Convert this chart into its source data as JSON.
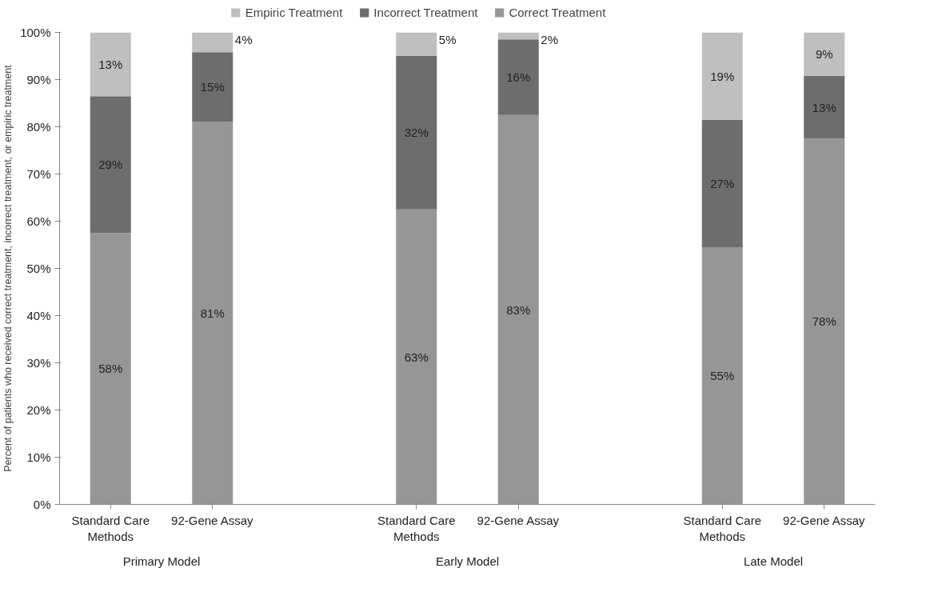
{
  "chart_data": {
    "type": "bar",
    "stacked": true,
    "categories": [
      "Standard Care Methods",
      "92-Gene Assay",
      null,
      "Standard Care Methods",
      "92-Gene Assay",
      null,
      "Standard Care Methods",
      "92-Gene Assay"
    ],
    "ylabel": "Percent of patients who received correct treatment, incorrect treatment, or empiric treatment",
    "annotations": [
      "Primary Model",
      "Early Model",
      "Late Model"
    ],
    "ylim": [
      0,
      100
    ],
    "yticks": [
      {
        "value": 0,
        "label": "0%"
      },
      {
        "value": 10,
        "label": "10%"
      },
      {
        "value": 20,
        "label": "20%"
      },
      {
        "value": 30,
        "label": "30%"
      },
      {
        "value": 40,
        "label": "40%"
      },
      {
        "value": 50,
        "label": "50%"
      },
      {
        "value": 60,
        "label": "60%"
      },
      {
        "value": 70,
        "label": "70%"
      },
      {
        "value": 80,
        "label": "80%"
      },
      {
        "value": 90,
        "label": "90%"
      },
      {
        "value": 100,
        "label": "100%"
      }
    ],
    "series": [
      {
        "name": "Correct Treatment",
        "color": "#969696",
        "values": [
          57.5,
          81,
          null,
          62.5,
          82.5,
          null,
          54.5,
          77.5
        ],
        "value_labels": [
          "58%",
          "81%",
          null,
          "63%",
          "83%",
          null,
          "55%",
          "78%"
        ]
      },
      {
        "name": "Incorrect Treatment",
        "color": "#6d6d6d",
        "values": [
          29,
          14.8,
          null,
          32.5,
          16,
          null,
          27,
          13.3
        ],
        "value_labels": [
          "29%",
          "15%",
          null,
          "32%",
          "16%",
          null,
          "27%",
          "13%"
        ]
      },
      {
        "name": "Empiric Treatment",
        "color": "#bfbfbf",
        "values": [
          13.5,
          4.2,
          null,
          5,
          1.5,
          null,
          18.5,
          9.2
        ],
        "value_labels": [
          "13%",
          "4%",
          null,
          "5%",
          "2%",
          null,
          "19%",
          "9%"
        ]
      }
    ],
    "grid": false,
    "legend": "top"
  }
}
